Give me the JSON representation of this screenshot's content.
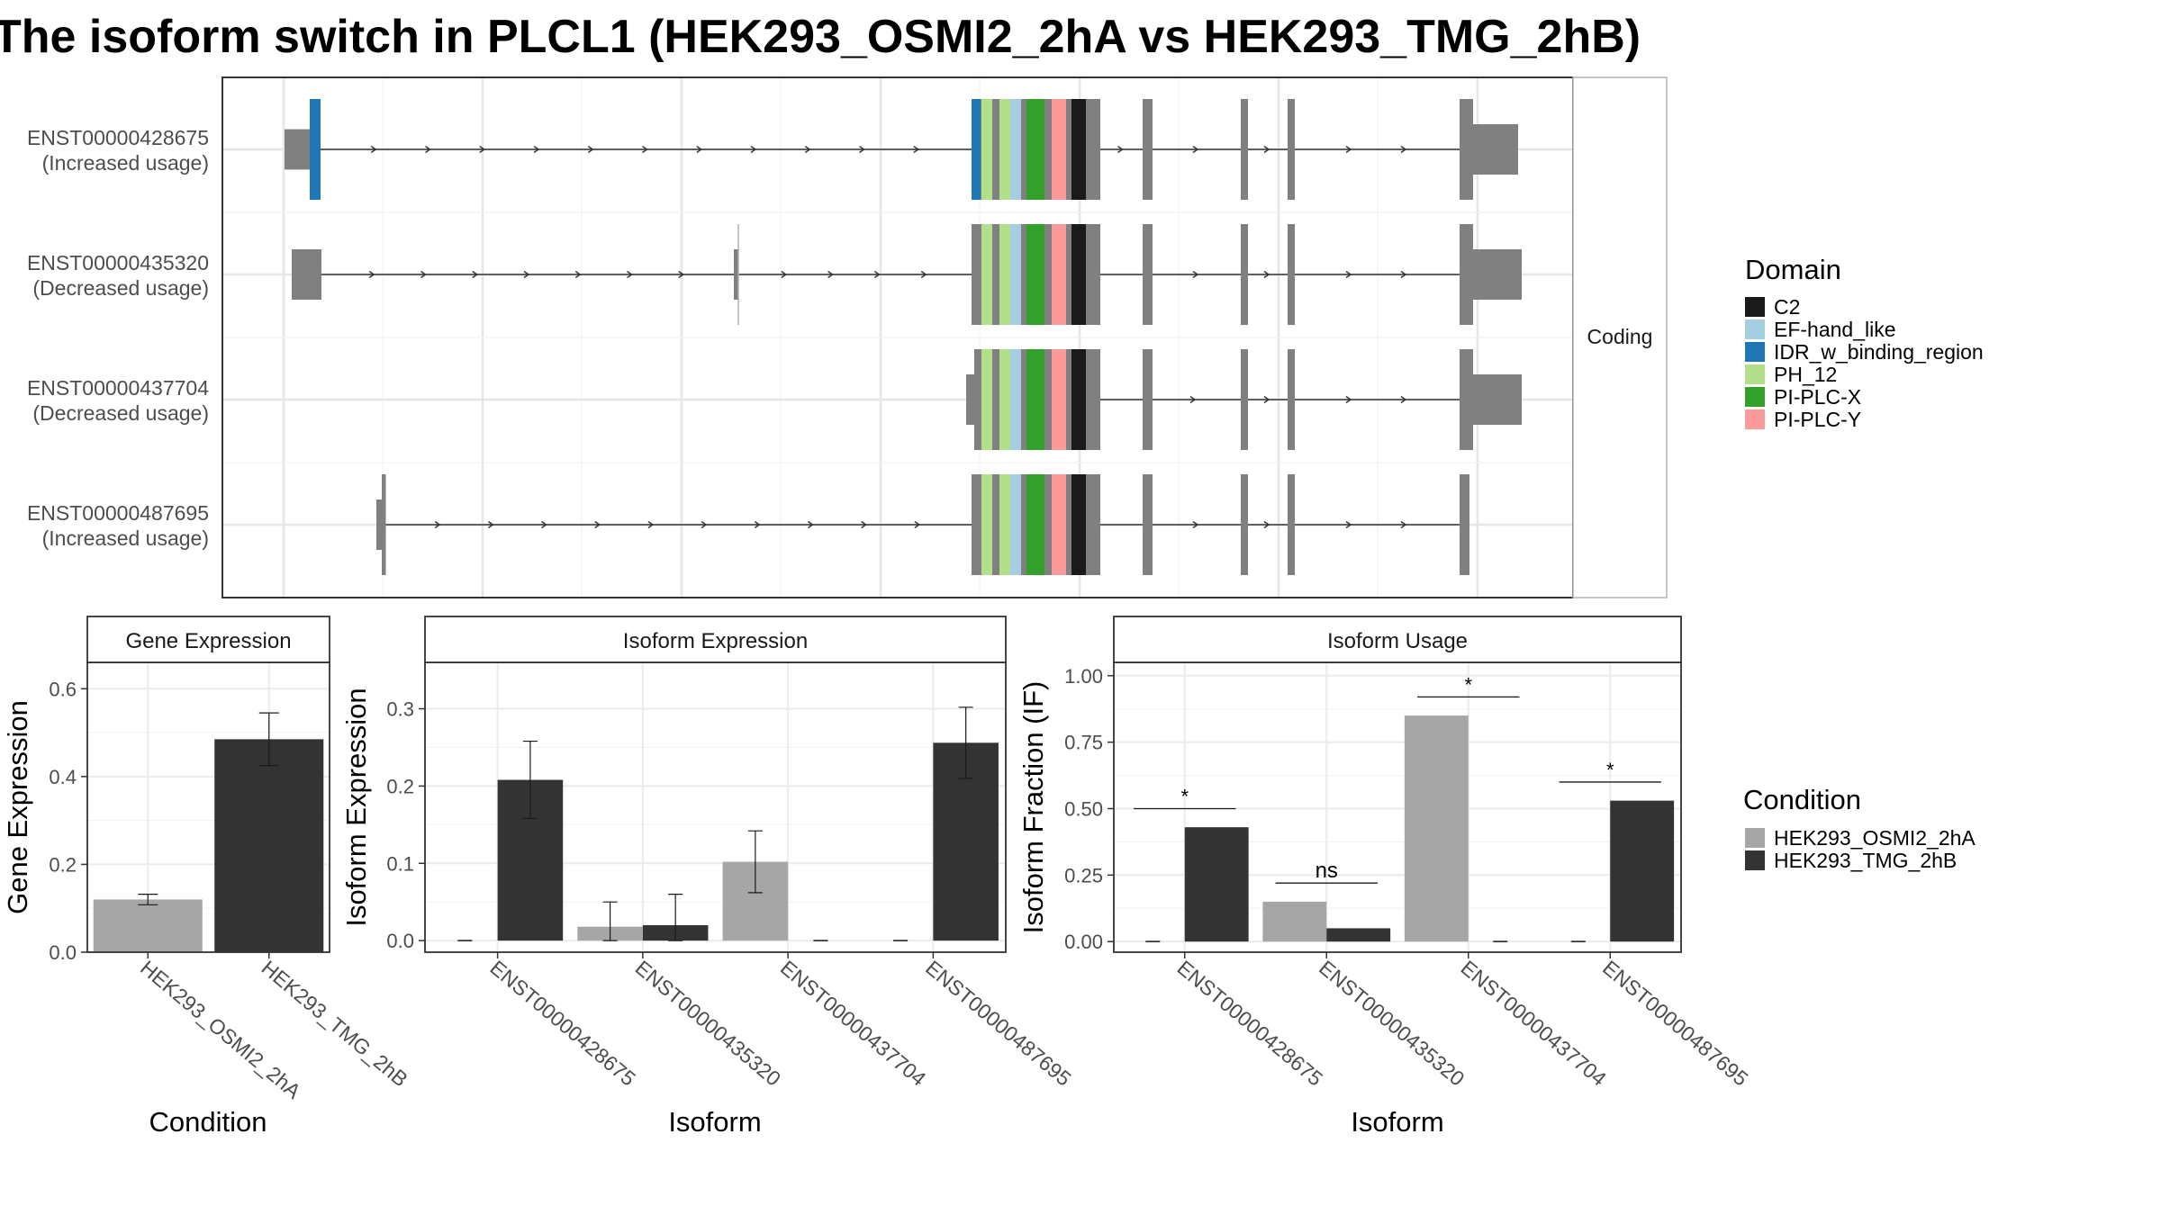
{
  "title": "The isoform switch in PLCL1 (HEK293_OSMI2_2hA vs HEK293_TMG_2hB)",
  "colors": {
    "exon": "#808080",
    "panel_border": "#333333",
    "strip_bg": "#ffffff",
    "grid": "#ebebeb",
    "condition_a": "#a6a6a6",
    "condition_b": "#333333"
  },
  "structure_panel": {
    "strip_label": "Coding",
    "transcripts": [
      {
        "id": "ENST00000428675",
        "note": "(Increased usage)"
      },
      {
        "id": "ENST00000435320",
        "note": "(Decreased usage)"
      },
      {
        "id": "ENST00000437704",
        "note": "(Decreased usage)"
      },
      {
        "id": "ENST00000487695",
        "note": "(Increased usage)"
      }
    ]
  },
  "domain_legend": {
    "title": "Domain",
    "items": [
      {
        "label": "C2",
        "color": "#1a1a1a"
      },
      {
        "label": "EF-hand_like",
        "color": "#a6cee3"
      },
      {
        "label": "IDR_w_binding_region",
        "color": "#1f78b4"
      },
      {
        "label": "PH_12",
        "color": "#b2df8a"
      },
      {
        "label": "PI-PLC-X",
        "color": "#33a02c"
      },
      {
        "label": "PI-PLC-Y",
        "color": "#fb9a99"
      }
    ]
  },
  "condition_legend": {
    "title": "Condition",
    "items": [
      {
        "label": "HEK293_OSMI2_2hA",
        "color": "#a6a6a6"
      },
      {
        "label": "HEK293_TMG_2hB",
        "color": "#333333"
      }
    ]
  },
  "chart_data": [
    {
      "type": "bar",
      "title": "Gene Expression",
      "xlabel": "Condition",
      "ylabel": "Gene Expression",
      "categories": [
        "HEK293_OSMI2_2hA",
        "HEK293_TMG_2hB"
      ],
      "values": [
        0.12,
        0.485
      ],
      "errors": [
        [
          0.108,
          0.132
        ],
        [
          0.425,
          0.545
        ]
      ],
      "ylim": [
        0,
        0.66
      ],
      "yticks": [
        "0.0",
        "0.2",
        "0.4",
        "0.6"
      ],
      "ytick_values": [
        0,
        0.2,
        0.4,
        0.6
      ],
      "grid": true
    },
    {
      "type": "bar",
      "title": "Isoform Expression",
      "xlabel": "Isoform",
      "ylabel": "Isoform Expression",
      "categories": [
        "ENST00000428675",
        "ENST00000435320",
        "ENST00000437704",
        "ENST00000487695"
      ],
      "series": [
        {
          "name": "HEK293_OSMI2_2hA",
          "values": [
            0.0,
            0.018,
            0.102,
            0.0
          ],
          "errors": [
            [
              0,
              0
            ],
            [
              0.0,
              0.05
            ],
            [
              0.062,
              0.142
            ],
            [
              0,
              0
            ]
          ]
        },
        {
          "name": "HEK293_TMG_2hB",
          "values": [
            0.208,
            0.02,
            0.0,
            0.256
          ],
          "errors": [
            [
              0.158,
              0.258
            ],
            [
              0.0,
              0.06
            ],
            [
              0,
              0
            ],
            [
              0.21,
              0.302
            ]
          ]
        }
      ],
      "ylim": [
        -0.015,
        0.36
      ],
      "yticks": [
        "0.0",
        "0.1",
        "0.2",
        "0.3"
      ],
      "ytick_values": [
        0,
        0.1,
        0.2,
        0.3
      ],
      "grid": true
    },
    {
      "type": "bar",
      "title": "Isoform Usage",
      "xlabel": "Isoform",
      "ylabel": "Isoform Fraction (IF)",
      "categories": [
        "ENST00000428675",
        "ENST00000435320",
        "ENST00000437704",
        "ENST00000487695"
      ],
      "series": [
        {
          "name": "HEK293_OSMI2_2hA",
          "values": [
            0.0,
            0.15,
            0.85,
            0.0
          ]
        },
        {
          "name": "HEK293_TMG_2hB",
          "values": [
            0.43,
            0.05,
            0.0,
            0.53
          ]
        }
      ],
      "significance": [
        "*",
        "ns",
        "*",
        "*"
      ],
      "ylim": [
        -0.04,
        1.05
      ],
      "yticks": [
        "0.00",
        "0.25",
        "0.50",
        "0.75",
        "1.00"
      ],
      "ytick_values": [
        0,
        0.25,
        0.5,
        0.75,
        1.0
      ],
      "grid": true
    }
  ]
}
